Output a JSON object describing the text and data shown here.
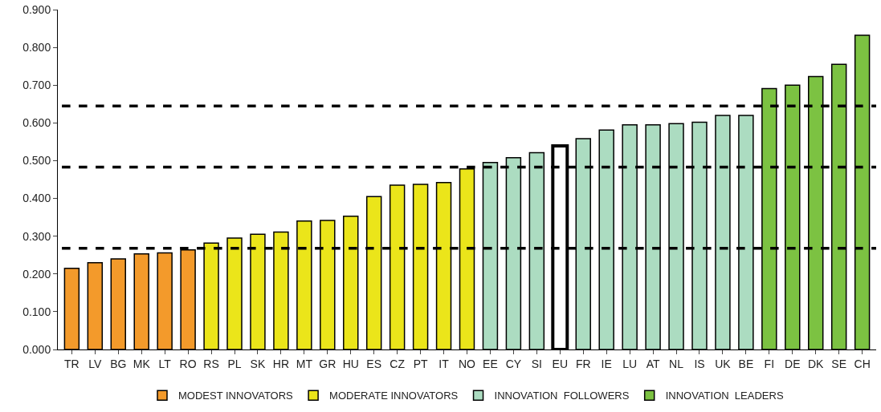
{
  "chart_data": {
    "type": "bar",
    "categories": [
      "TR",
      "LV",
      "BG",
      "MK",
      "LT",
      "RO",
      "RS",
      "PL",
      "SK",
      "HR",
      "MT",
      "GR",
      "HU",
      "ES",
      "CZ",
      "PT",
      "IT",
      "NO",
      "EE",
      "CY",
      "SI",
      "EU",
      "FR",
      "IE",
      "LU",
      "AT",
      "NL",
      "IS",
      "UK",
      "BE",
      "FI",
      "DE",
      "DK",
      "SE",
      "CH"
    ],
    "series": [
      {
        "name": "MODEST INNOVATORS",
        "color": "#f39a2b",
        "values": [
          0.215,
          0.23,
          0.24,
          0.253,
          0.256,
          0.264,
          null,
          null,
          null,
          null,
          null,
          null,
          null,
          null,
          null,
          null,
          null,
          null,
          null,
          null,
          null,
          null,
          null,
          null,
          null,
          null,
          null,
          null,
          null,
          null,
          null,
          null,
          null,
          null,
          null
        ]
      },
      {
        "name": "MODERATE INNOVATORS",
        "color": "#ebe51a",
        "values": [
          null,
          null,
          null,
          null,
          null,
          null,
          0.282,
          0.295,
          0.305,
          0.311,
          0.34,
          0.342,
          0.353,
          0.405,
          0.435,
          0.437,
          0.442,
          0.478,
          null,
          null,
          null,
          null,
          null,
          null,
          null,
          null,
          null,
          null,
          null,
          null,
          null,
          null,
          null,
          null,
          null
        ]
      },
      {
        "name": "INNOVATION  FOLLOWERS",
        "color": "#acdcc1",
        "values": [
          null,
          null,
          null,
          null,
          null,
          null,
          null,
          null,
          null,
          null,
          null,
          null,
          null,
          null,
          null,
          null,
          null,
          null,
          0.495,
          0.508,
          0.521,
          null,
          0.558,
          0.581,
          0.595,
          0.595,
          0.598,
          0.602,
          0.62,
          0.62,
          null,
          null,
          null,
          null,
          null
        ]
      },
      {
        "color": "#ffffff",
        "values": [
          null,
          null,
          null,
          null,
          null,
          null,
          null,
          null,
          null,
          null,
          null,
          null,
          null,
          null,
          null,
          null,
          null,
          null,
          null,
          null,
          null,
          0.539,
          null,
          null,
          null,
          null,
          null,
          null,
          null,
          null,
          null,
          null,
          null,
          null,
          null
        ]
      },
      {
        "name": "INNOVATION  LEADERS",
        "color": "#7cc242",
        "values": [
          null,
          null,
          null,
          null,
          null,
          null,
          null,
          null,
          null,
          null,
          null,
          null,
          null,
          null,
          null,
          null,
          null,
          null,
          null,
          null,
          null,
          null,
          null,
          null,
          null,
          null,
          null,
          null,
          null,
          null,
          0.691,
          0.7,
          0.723,
          0.755,
          0.832
        ]
      }
    ],
    "ylim": [
      0,
      0.9
    ],
    "yticks": [
      {
        "value": 0,
        "label": "0.000"
      },
      {
        "value": 0.1,
        "label": "0.100"
      },
      {
        "value": 0.2,
        "label": "0.200"
      },
      {
        "value": 0.3,
        "label": "0.300"
      },
      {
        "value": 0.4,
        "label": "0.400"
      },
      {
        "value": 0.5,
        "label": "0.500"
      },
      {
        "value": 0.6,
        "label": "0.600"
      },
      {
        "value": 0.7,
        "label": "0.700"
      },
      {
        "value": 0.8,
        "label": "0.800"
      },
      {
        "value": 0.9,
        "label": "0.900"
      }
    ],
    "ref_lines": [
      {
        "axis": "y",
        "value": 0.645,
        "color": "#000000",
        "line_style": "dashed"
      },
      {
        "axis": "y",
        "value": 0.483,
        "color": "#000000",
        "line_style": "dashed"
      },
      {
        "axis": "y",
        "value": 0.268,
        "color": "#000000",
        "line_style": "dashed"
      }
    ],
    "grid": false,
    "legend": "bottom"
  }
}
